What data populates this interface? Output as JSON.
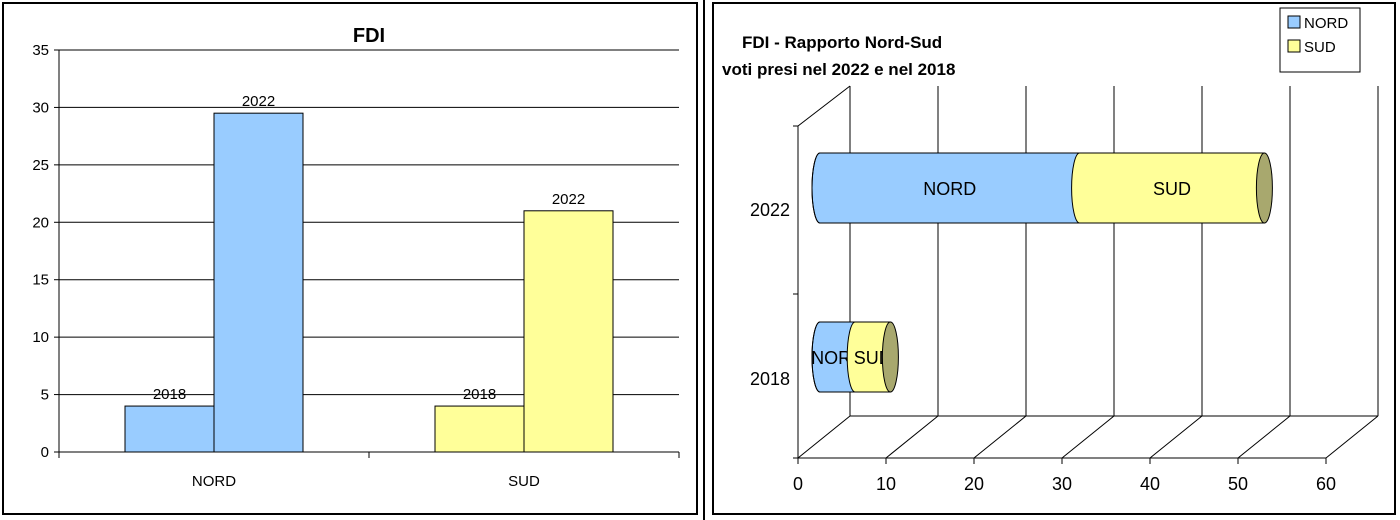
{
  "chart_data": [
    {
      "type": "bar",
      "title": "FDI",
      "categories": [
        "NORD",
        "SUD"
      ],
      "series": [
        {
          "values": [
            4,
            4
          ],
          "data_labels": [
            "2018",
            "2018"
          ],
          "color": "#99ccff"
        },
        {
          "values": [
            29.5,
            21
          ],
          "data_labels": [
            "2022",
            "2022"
          ],
          "color": "#ffff99"
        }
      ],
      "bar_colors_by_category": [
        "#99ccff",
        "#ffff99"
      ],
      "ylim": [
        0,
        35
      ],
      "yticks": [
        "0",
        "5",
        "10",
        "15",
        "20",
        "25",
        "30",
        "35"
      ],
      "grid": true
    },
    {
      "type": "bar",
      "orientation": "horizontal",
      "stacked": true,
      "style": "3d-cylinder",
      "title": "FDI - Rapporto Nord-Sud",
      "subtitle": "voti presi nel 2022 e nel 2018",
      "categories": [
        "2022",
        "2018"
      ],
      "series": [
        {
          "name": "NORD",
          "values": [
            29.5,
            4
          ],
          "color": "#99ccff"
        },
        {
          "name": "SUD",
          "values": [
            21,
            4
          ],
          "color": "#ffff99"
        }
      ],
      "xlim": [
        0,
        60
      ],
      "xticks": [
        "0",
        "10",
        "20",
        "30",
        "40",
        "50",
        "60"
      ],
      "legend": "top-right",
      "grid": true
    }
  ]
}
